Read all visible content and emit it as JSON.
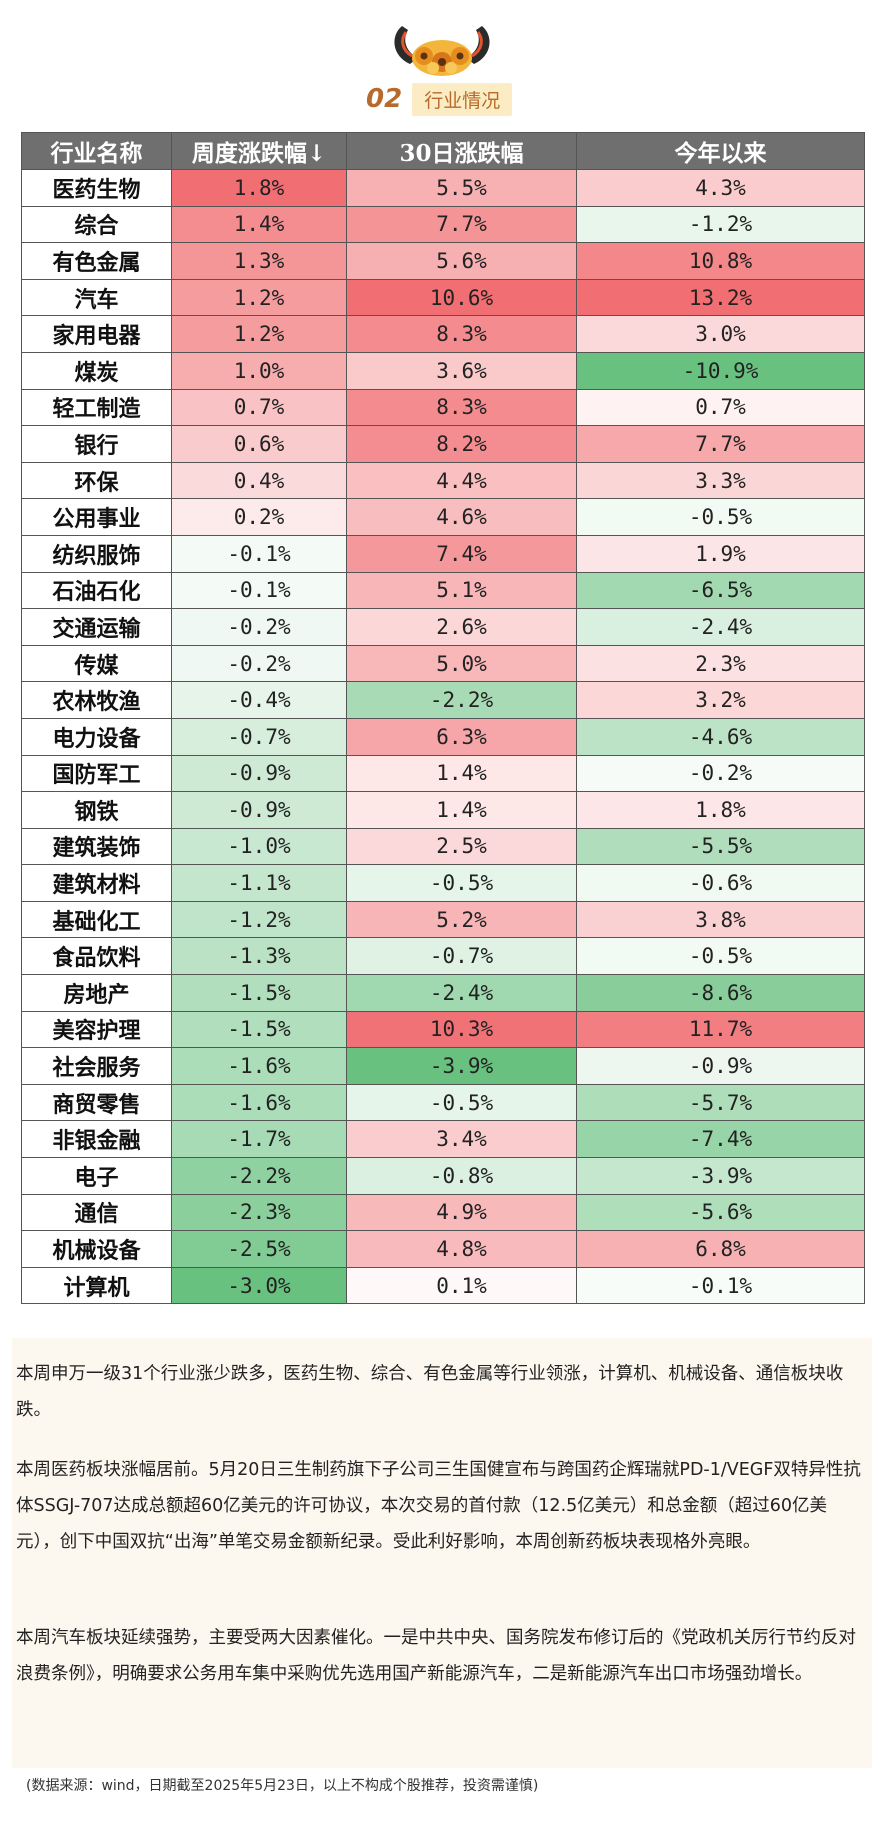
{
  "section": {
    "number": "02",
    "title": "行业情况"
  },
  "table": {
    "headers": [
      "行业名称",
      "周度涨跌幅↓",
      "30日涨跌幅",
      "今年以来"
    ],
    "rows": [
      {
        "name": "医药生物",
        "week": "1.8%",
        "d30": "5.5%",
        "ytd": "4.3%",
        "w": 1.8,
        "m": 5.5,
        "y": 4.3
      },
      {
        "name": "综合",
        "week": "1.4%",
        "d30": "7.7%",
        "ytd": "-1.2%",
        "w": 1.4,
        "m": 7.7,
        "y": -1.2
      },
      {
        "name": "有色金属",
        "week": "1.3%",
        "d30": "5.6%",
        "ytd": "10.8%",
        "w": 1.3,
        "m": 5.6,
        "y": 10.8
      },
      {
        "name": "汽车",
        "week": "1.2%",
        "d30": "10.6%",
        "ytd": "13.2%",
        "w": 1.2,
        "m": 10.6,
        "y": 13.2
      },
      {
        "name": "家用电器",
        "week": "1.2%",
        "d30": "8.3%",
        "ytd": "3.0%",
        "w": 1.2,
        "m": 8.3,
        "y": 3.0
      },
      {
        "name": "煤炭",
        "week": "1.0%",
        "d30": "3.6%",
        "ytd": "-10.9%",
        "w": 1.0,
        "m": 3.6,
        "y": -10.9
      },
      {
        "name": "轻工制造",
        "week": "0.7%",
        "d30": "8.3%",
        "ytd": "0.7%",
        "w": 0.7,
        "m": 8.3,
        "y": 0.7
      },
      {
        "name": "银行",
        "week": "0.6%",
        "d30": "8.2%",
        "ytd": "7.7%",
        "w": 0.6,
        "m": 8.2,
        "y": 7.7
      },
      {
        "name": "环保",
        "week": "0.4%",
        "d30": "4.4%",
        "ytd": "3.3%",
        "w": 0.4,
        "m": 4.4,
        "y": 3.3
      },
      {
        "name": "公用事业",
        "week": "0.2%",
        "d30": "4.6%",
        "ytd": "-0.5%",
        "w": 0.2,
        "m": 4.6,
        "y": -0.5
      },
      {
        "name": "纺织服饰",
        "week": "-0.1%",
        "d30": "7.4%",
        "ytd": "1.9%",
        "w": -0.1,
        "m": 7.4,
        "y": 1.9
      },
      {
        "name": "石油石化",
        "week": "-0.1%",
        "d30": "5.1%",
        "ytd": "-6.5%",
        "w": -0.1,
        "m": 5.1,
        "y": -6.5
      },
      {
        "name": "交通运输",
        "week": "-0.2%",
        "d30": "2.6%",
        "ytd": "-2.4%",
        "w": -0.2,
        "m": 2.6,
        "y": -2.4
      },
      {
        "name": "传媒",
        "week": "-0.2%",
        "d30": "5.0%",
        "ytd": "2.3%",
        "w": -0.2,
        "m": 5.0,
        "y": 2.3
      },
      {
        "name": "农林牧渔",
        "week": "-0.4%",
        "d30": "-2.2%",
        "ytd": "3.2%",
        "w": -0.4,
        "m": -2.2,
        "y": 3.2
      },
      {
        "name": "电力设备",
        "week": "-0.7%",
        "d30": "6.3%",
        "ytd": "-4.6%",
        "w": -0.7,
        "m": 6.3,
        "y": -4.6
      },
      {
        "name": "国防军工",
        "week": "-0.9%",
        "d30": "1.4%",
        "ytd": "-0.2%",
        "w": -0.9,
        "m": 1.4,
        "y": -0.2
      },
      {
        "name": "钢铁",
        "week": "-0.9%",
        "d30": "1.4%",
        "ytd": "1.8%",
        "w": -0.9,
        "m": 1.4,
        "y": 1.8
      },
      {
        "name": "建筑装饰",
        "week": "-1.0%",
        "d30": "2.5%",
        "ytd": "-5.5%",
        "w": -1.0,
        "m": 2.5,
        "y": -5.5
      },
      {
        "name": "建筑材料",
        "week": "-1.1%",
        "d30": "-0.5%",
        "ytd": "-0.6%",
        "w": -1.1,
        "m": -0.5,
        "y": -0.6
      },
      {
        "name": "基础化工",
        "week": "-1.2%",
        "d30": "5.2%",
        "ytd": "3.8%",
        "w": -1.2,
        "m": 5.2,
        "y": 3.8
      },
      {
        "name": "食品饮料",
        "week": "-1.3%",
        "d30": "-0.7%",
        "ytd": "-0.5%",
        "w": -1.3,
        "m": -0.7,
        "y": -0.5
      },
      {
        "name": "房地产",
        "week": "-1.5%",
        "d30": "-2.4%",
        "ytd": "-8.6%",
        "w": -1.5,
        "m": -2.4,
        "y": -8.6
      },
      {
        "name": "美容护理",
        "week": "-1.5%",
        "d30": "10.3%",
        "ytd": "11.7%",
        "w": -1.5,
        "m": 10.3,
        "y": 11.7
      },
      {
        "name": "社会服务",
        "week": "-1.6%",
        "d30": "-3.9%",
        "ytd": "-0.9%",
        "w": -1.6,
        "m": -3.9,
        "y": -0.9
      },
      {
        "name": "商贸零售",
        "week": "-1.6%",
        "d30": "-0.5%",
        "ytd": "-5.7%",
        "w": -1.6,
        "m": -0.5,
        "y": -5.7
      },
      {
        "name": "非银金融",
        "week": "-1.7%",
        "d30": "3.4%",
        "ytd": "-7.4%",
        "w": -1.7,
        "m": 3.4,
        "y": -7.4
      },
      {
        "name": "电子",
        "week": "-2.2%",
        "d30": "-0.8%",
        "ytd": "-3.9%",
        "w": -2.2,
        "m": -0.8,
        "y": -3.9
      },
      {
        "name": "通信",
        "week": "-2.3%",
        "d30": "4.9%",
        "ytd": "-5.6%",
        "w": -2.3,
        "m": 4.9,
        "y": -5.6
      },
      {
        "name": "机械设备",
        "week": "-2.5%",
        "d30": "4.8%",
        "ytd": "6.8%",
        "w": -2.5,
        "m": 4.8,
        "y": 6.8
      },
      {
        "name": "计算机",
        "week": "-3.0%",
        "d30": "0.1%",
        "ytd": "-0.1%",
        "w": -3.0,
        "m": 0.1,
        "y": -0.1
      }
    ]
  },
  "colors": {
    "up_max": "#f0686c",
    "down_max": "#63be7b",
    "header_bg": "#6f6f6f"
  },
  "paragraphs": [
    "本周申万一级31个行业涨少跌多，医药生物、综合、有色金属等行业领涨，计算机、机械设备、通信板块收跌。",
    "本周医药板块涨幅居前。5月20日三生制药旗下子公司三生国健宣布与跨国药企辉瑞就PD-1/VEGF双特异性抗体SSGJ-707达成总额超60亿美元的许可协议，本次交易的首付款（12.5亿美元）和总金额（超过60亿美元），创下中国双抗“出海”单笔交易金额新纪录。受此利好影响，本周创新药板块表现格外亮眼。",
    "本周汽车板块延续强势，主要受两大因素催化。一是中共中央、国务院发布修订后的《党政机关厉行节约反对浪费条例》，明确要求公务用车集中采购优先选用国产新能源汽车，二是新能源汽车出口市场强劲增长。"
  ],
  "source_note": "(数据来源：wind，日期截至2025年5月23日，以上不构成个股推荐，投资需谨慎)"
}
